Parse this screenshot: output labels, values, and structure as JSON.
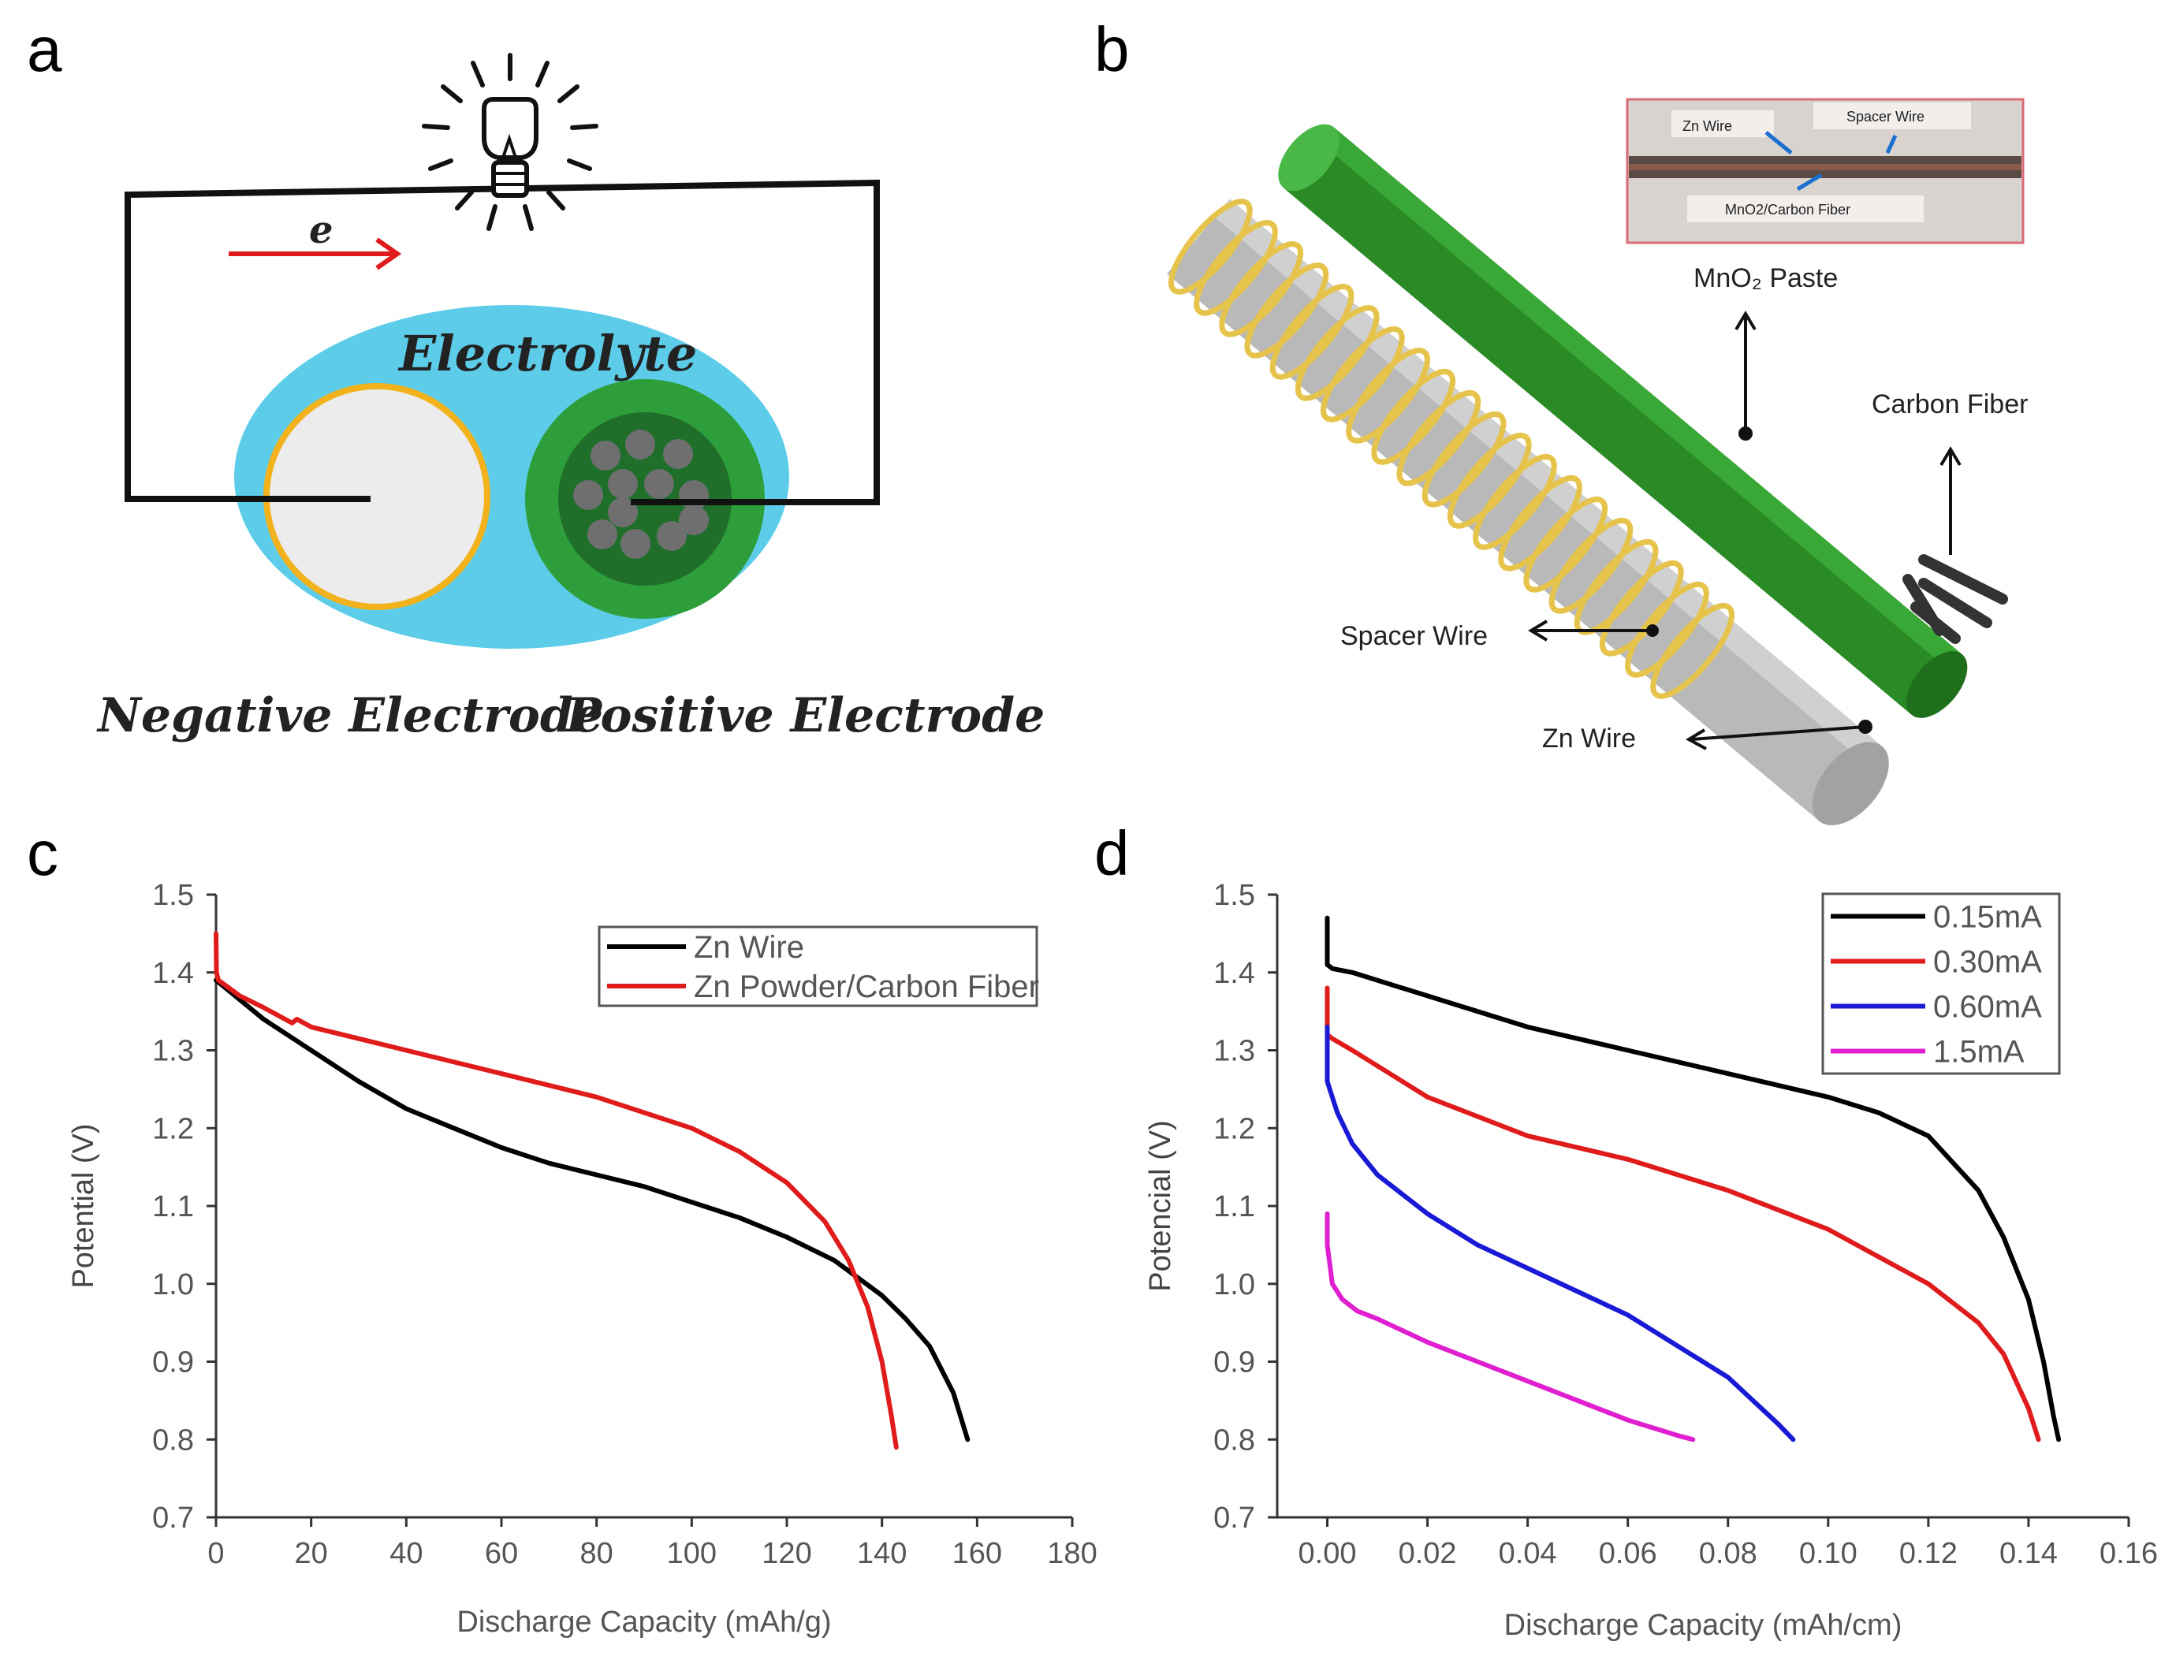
{
  "panels": {
    "a": {
      "letter": "a",
      "current_label": "e",
      "electrolyte_label": "Electrolyte",
      "negative_label": "Negative Electrode",
      "positive_label": "Positive Electrode"
    },
    "b": {
      "letter": "b",
      "inset_labels": {
        "zn_wire": "Zn Wire",
        "spacer_wire": "Spacer Wire",
        "mno2_carbon": "MnO2/Carbon Fiber"
      },
      "labels": {
        "mno2_paste": "MnO₂ Paste",
        "carbon_fiber": "Carbon Fiber",
        "spacer_wire": "Spacer Wire",
        "zn_wire": "Zn Wire"
      }
    },
    "c": {
      "letter": "c"
    },
    "d": {
      "letter": "d"
    }
  },
  "colors": {
    "electrolyte": "#5ccce9",
    "negative_fill": "#ececec",
    "negative_ring": "#f2b21b",
    "positive_outer": "#2e9e3b",
    "positive_inner": "#1f6f2a",
    "particle": "#6f6f6f",
    "arrow_red": "#e01b1b",
    "rod_green": "#2a8a26",
    "rod_grey": "#b9b9b9",
    "coil": "#e6c34a"
  },
  "chart_data": [
    {
      "id": "c",
      "type": "line",
      "xlabel": "Discharge Capacity (mAh/g)",
      "ylabel": "Potential (V)",
      "xlim": [
        0,
        180
      ],
      "ylim": [
        0.7,
        1.5
      ],
      "xticks": [
        "0",
        "20",
        "40",
        "60",
        "80",
        "100",
        "120",
        "140",
        "160",
        "180"
      ],
      "yticks": [
        "0.7",
        "0.8",
        "0.9",
        "1.0",
        "1.1",
        "1.2",
        "1.3",
        "1.4",
        "1.5"
      ],
      "legend_position": "top-right",
      "series": [
        {
          "name": "Zn Wire",
          "color": "#000000",
          "x": [
            0,
            5,
            10,
            20,
            30,
            40,
            50,
            60,
            70,
            80,
            90,
            100,
            110,
            120,
            130,
            140,
            145,
            150,
            155,
            158
          ],
          "y": [
            1.39,
            1.365,
            1.34,
            1.3,
            1.26,
            1.225,
            1.2,
            1.175,
            1.155,
            1.14,
            1.125,
            1.105,
            1.085,
            1.06,
            1.03,
            0.985,
            0.955,
            0.92,
            0.86,
            0.8
          ]
        },
        {
          "name": "Zn Powder/Carbon Fiber",
          "color": "#e01b1b",
          "x": [
            0,
            0.1,
            0.5,
            5,
            10,
            16,
            17,
            20,
            30,
            40,
            60,
            80,
            100,
            110,
            120,
            128,
            133,
            137,
            140,
            142,
            143
          ],
          "y": [
            1.45,
            1.4,
            1.39,
            1.37,
            1.355,
            1.335,
            1.34,
            1.33,
            1.315,
            1.3,
            1.27,
            1.24,
            1.2,
            1.17,
            1.13,
            1.08,
            1.03,
            0.97,
            0.9,
            0.83,
            0.79
          ]
        }
      ]
    },
    {
      "id": "d",
      "type": "line",
      "xlabel": "Discharge Capacity (mAh/cm)",
      "ylabel": "Potencial (V)",
      "xlim": [
        -0.01,
        0.16
      ],
      "ylim": [
        0.7,
        1.5
      ],
      "xticks": [
        "0.00",
        "0.02",
        "0.04",
        "0.06",
        "0.08",
        "0.10",
        "0.12",
        "0.14",
        "0.16"
      ],
      "yticks": [
        "0.7",
        "0.8",
        "0.9",
        "1.0",
        "1.1",
        "1.2",
        "1.3",
        "1.4",
        "1.5"
      ],
      "legend_position": "top-right",
      "series": [
        {
          "name": "0.15mA",
          "color": "#000000",
          "x": [
            0,
            0,
            0.001,
            0.005,
            0.02,
            0.04,
            0.06,
            0.08,
            0.1,
            0.11,
            0.12,
            0.13,
            0.135,
            0.14,
            0.143,
            0.145,
            0.146
          ],
          "y": [
            1.47,
            1.41,
            1.405,
            1.4,
            1.37,
            1.33,
            1.3,
            1.27,
            1.24,
            1.22,
            1.19,
            1.12,
            1.06,
            0.98,
            0.9,
            0.83,
            0.8
          ]
        },
        {
          "name": "0.30mA",
          "color": "#e01b1b",
          "x": [
            0,
            0,
            0.001,
            0.005,
            0.02,
            0.04,
            0.06,
            0.08,
            0.1,
            0.12,
            0.13,
            0.135,
            0.14,
            0.142
          ],
          "y": [
            1.38,
            1.32,
            1.315,
            1.3,
            1.24,
            1.19,
            1.16,
            1.12,
            1.07,
            1.0,
            0.95,
            0.91,
            0.84,
            0.8
          ]
        },
        {
          "name": "0.60mA",
          "color": "#1a1ad6",
          "x": [
            0,
            0,
            0.002,
            0.005,
            0.01,
            0.02,
            0.03,
            0.04,
            0.05,
            0.06,
            0.07,
            0.08,
            0.085,
            0.09,
            0.093
          ],
          "y": [
            1.33,
            1.26,
            1.22,
            1.18,
            1.14,
            1.09,
            1.05,
            1.02,
            0.99,
            0.96,
            0.92,
            0.88,
            0.85,
            0.82,
            0.8
          ]
        },
        {
          "name": "1.5mA",
          "color": "#e020d0",
          "x": [
            0,
            0,
            0.001,
            0.003,
            0.006,
            0.01,
            0.02,
            0.03,
            0.04,
            0.05,
            0.06,
            0.07,
            0.073
          ],
          "y": [
            1.09,
            1.05,
            1.0,
            0.98,
            0.965,
            0.955,
            0.925,
            0.9,
            0.875,
            0.85,
            0.825,
            0.805,
            0.8
          ]
        }
      ]
    }
  ]
}
